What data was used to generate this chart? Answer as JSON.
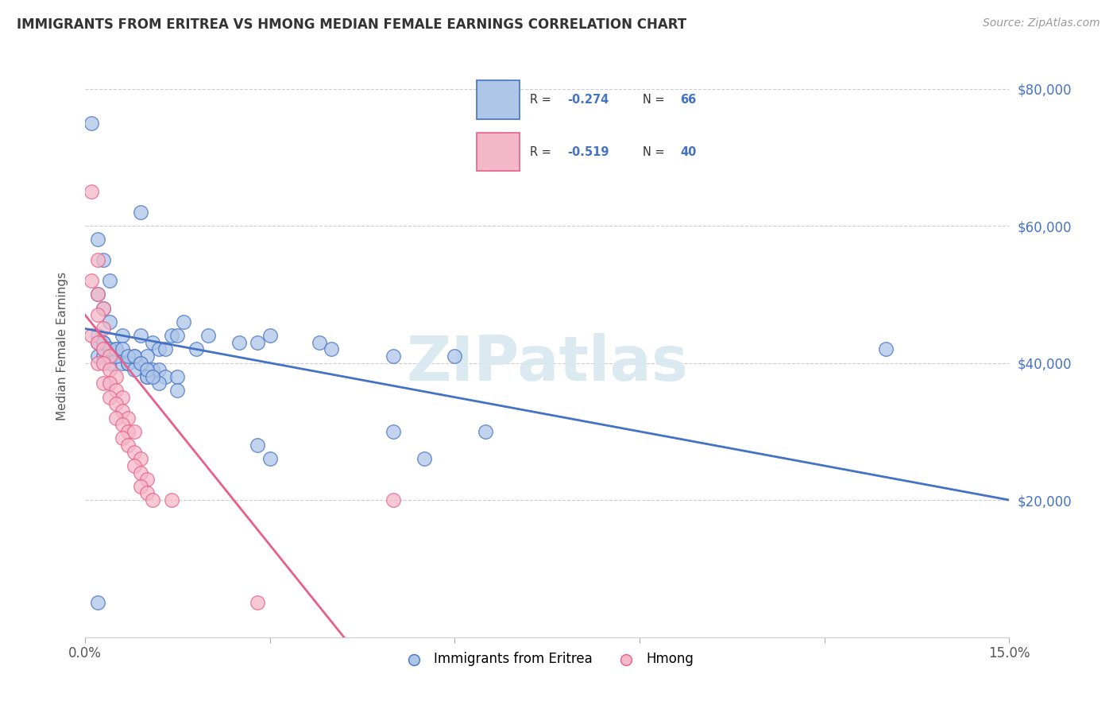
{
  "title": "IMMIGRANTS FROM ERITREA VS HMONG MEDIAN FEMALE EARNINGS CORRELATION CHART",
  "source": "Source: ZipAtlas.com",
  "ylabel": "Median Female Earnings",
  "xlim": [
    0.0,
    0.15
  ],
  "ylim": [
    0,
    85000
  ],
  "xticks": [
    0.0,
    0.03,
    0.06,
    0.09,
    0.12,
    0.15
  ],
  "xtick_labels": [
    "0.0%",
    "",
    "",
    "",
    "",
    "15.0%"
  ],
  "yticks": [
    0,
    20000,
    40000,
    60000,
    80000
  ],
  "ytick_labels_right": [
    "",
    "$20,000",
    "$40,000",
    "$60,000",
    "$80,000"
  ],
  "legend_label1": "Immigrants from Eritrea",
  "legend_label2": "Hmong",
  "legend_R1": "-0.274",
  "legend_N1": "66",
  "legend_R2": "-0.519",
  "legend_N2": "40",
  "color_eritrea": "#aec6e8",
  "color_hmong": "#f4b8c8",
  "color_line_eritrea": "#4472c4",
  "color_line_hmong": "#e8608a",
  "watermark": "ZIPatlas",
  "eritrea_x": [
    0.001,
    0.009,
    0.002,
    0.003,
    0.004,
    0.002,
    0.003,
    0.004,
    0.006,
    0.003,
    0.004,
    0.005,
    0.008,
    0.002,
    0.003,
    0.004,
    0.006,
    0.007,
    0.009,
    0.011,
    0.012,
    0.01,
    0.013,
    0.015,
    0.016,
    0.014,
    0.002,
    0.003,
    0.005,
    0.007,
    0.008,
    0.01,
    0.012,
    0.015,
    0.009,
    0.011,
    0.012,
    0.01,
    0.013,
    0.015,
    0.018,
    0.02,
    0.025,
    0.028,
    0.03,
    0.038,
    0.04,
    0.05,
    0.06,
    0.065,
    0.13,
    0.05,
    0.028,
    0.03,
    0.002,
    0.003,
    0.004,
    0.005,
    0.006,
    0.007,
    0.008,
    0.009,
    0.01,
    0.011,
    0.002,
    0.055
  ],
  "eritrea_y": [
    75000,
    62000,
    58000,
    55000,
    52000,
    50000,
    48000,
    46000,
    44000,
    43000,
    42000,
    42000,
    41000,
    41000,
    41000,
    40000,
    40000,
    40000,
    40000,
    39000,
    39000,
    38000,
    38000,
    38000,
    46000,
    44000,
    43000,
    42000,
    41000,
    40000,
    39000,
    38000,
    37000,
    36000,
    44000,
    43000,
    42000,
    41000,
    42000,
    44000,
    42000,
    44000,
    43000,
    43000,
    44000,
    43000,
    42000,
    41000,
    41000,
    30000,
    42000,
    30000,
    28000,
    26000,
    44000,
    43000,
    42000,
    42000,
    42000,
    41000,
    41000,
    40000,
    39000,
    38000,
    5000,
    26000
  ],
  "hmong_x": [
    0.001,
    0.002,
    0.001,
    0.002,
    0.003,
    0.002,
    0.003,
    0.001,
    0.002,
    0.003,
    0.004,
    0.002,
    0.003,
    0.004,
    0.005,
    0.003,
    0.004,
    0.005,
    0.006,
    0.004,
    0.005,
    0.006,
    0.007,
    0.005,
    0.006,
    0.007,
    0.008,
    0.006,
    0.007,
    0.008,
    0.009,
    0.008,
    0.009,
    0.01,
    0.009,
    0.01,
    0.011,
    0.014,
    0.028,
    0.05
  ],
  "hmong_y": [
    65000,
    55000,
    52000,
    50000,
    48000,
    47000,
    45000,
    44000,
    43000,
    42000,
    41000,
    40000,
    40000,
    39000,
    38000,
    37000,
    37000,
    36000,
    35000,
    35000,
    34000,
    33000,
    32000,
    32000,
    31000,
    30000,
    30000,
    29000,
    28000,
    27000,
    26000,
    25000,
    24000,
    23000,
    22000,
    21000,
    20000,
    20000,
    5000,
    20000
  ],
  "eritrea_line_x": [
    0.0,
    0.15
  ],
  "eritrea_line_y": [
    45000,
    20000
  ],
  "hmong_line_x": [
    0.0,
    0.042
  ],
  "hmong_line_y": [
    47000,
    0
  ]
}
